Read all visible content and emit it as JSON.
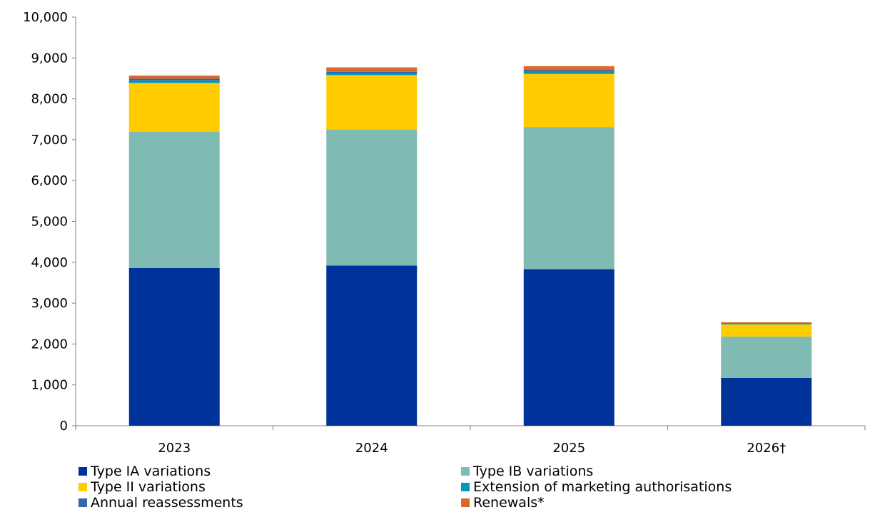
{
  "chart_data": {
    "type": "bar",
    "stacked": true,
    "categories": [
      "2023",
      "2024",
      "2025",
      "2026†"
    ],
    "ylim": [
      0,
      10000
    ],
    "yticks": [
      "0",
      "1,000",
      "2,000",
      "3,000",
      "4,000",
      "5,000",
      "6,000",
      "7,000",
      "8,000",
      "9,000",
      "10,000"
    ],
    "legend_position": "bottom",
    "grid": false,
    "series": [
      {
        "name": "Type IA variations",
        "color": "#003399",
        "values": [
          3860,
          3920,
          3830,
          1170
        ]
      },
      {
        "name": "Type IB variations",
        "color": "#7FBBB2",
        "values": [
          3330,
          3330,
          3480,
          1010
        ]
      },
      {
        "name": "Type II variations",
        "color": "#FFCC00",
        "values": [
          1200,
          1330,
          1300,
          300
        ]
      },
      {
        "name": "Extension of marketing authorisations",
        "color": "#0099BB",
        "values": [
          60,
          40,
          50,
          15
        ]
      },
      {
        "name": "Annual reassessments",
        "color": "#3366AA",
        "values": [
          40,
          40,
          40,
          10
        ]
      },
      {
        "name": "Renewals*",
        "color": "#D9692A",
        "values": [
          80,
          110,
          100,
          25
        ]
      }
    ]
  }
}
